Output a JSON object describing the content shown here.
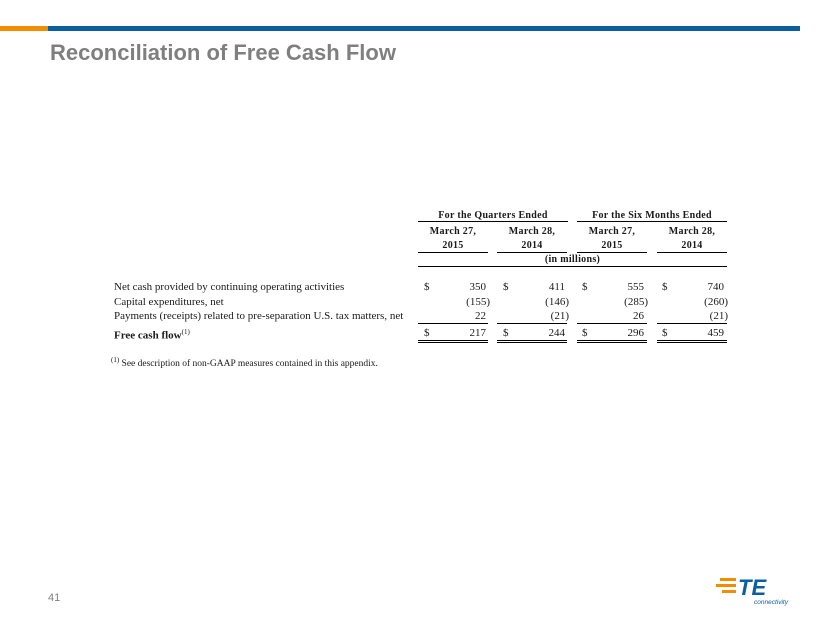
{
  "colors": {
    "accent": "#f28c00",
    "brand_blue": "#0a5fa0",
    "title_gray": "#7f7f7f"
  },
  "slide": {
    "title": "Reconciliation of Free Cash Flow",
    "page_number": "41"
  },
  "table": {
    "group_headers": [
      "For the Quarters Ended",
      "For the Six Months Ended"
    ],
    "columns": [
      {
        "line1": "March 27,",
        "line2": "2015"
      },
      {
        "line1": "March 28,",
        "line2": "2014"
      },
      {
        "line1": "March 27,",
        "line2": "2015"
      },
      {
        "line1": "March 28,",
        "line2": "2014"
      }
    ],
    "units": "(in millions)",
    "rows": [
      {
        "label": "Net cash provided by continuing operating activities",
        "cells": [
          {
            "d": "$",
            "v": "350"
          },
          {
            "d": "$",
            "v": "411"
          },
          {
            "d": "$",
            "v": "555"
          },
          {
            "d": "$",
            "v": "740"
          }
        ]
      },
      {
        "label": "Capital expenditures, net",
        "cells": [
          {
            "d": "",
            "v": "(155)"
          },
          {
            "d": "",
            "v": "(146)"
          },
          {
            "d": "",
            "v": "(285)"
          },
          {
            "d": "",
            "v": "(260)"
          }
        ]
      },
      {
        "label": "Payments (receipts) related to pre-separation U.S. tax matters, net",
        "cells": [
          {
            "d": "",
            "v": "22"
          },
          {
            "d": "",
            "v": "(21)"
          },
          {
            "d": "",
            "v": "26"
          },
          {
            "d": "",
            "v": "(21)"
          }
        ]
      },
      {
        "label": "Free cash flow",
        "label_sup": "(1)",
        "cells": [
          {
            "d": "$",
            "v": "217"
          },
          {
            "d": "$",
            "v": "244"
          },
          {
            "d": "$",
            "v": "296"
          },
          {
            "d": "$",
            "v": "459"
          }
        ]
      }
    ]
  },
  "footnote": {
    "marker": "(1)",
    "text": " See description of non-GAAP measures contained in this appendix."
  },
  "logo": {
    "mark": "TE",
    "tagline": "connectivity"
  }
}
